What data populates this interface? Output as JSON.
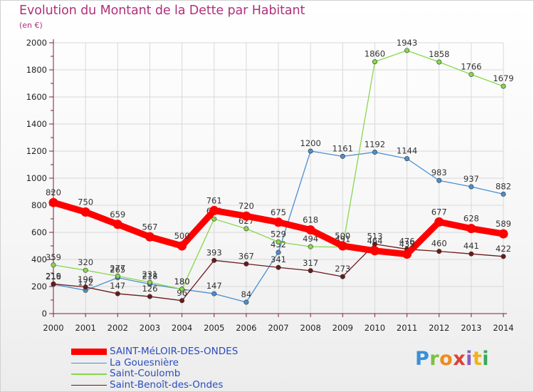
{
  "title": "Evolution du Montant de la Dette par Habitant",
  "unit": "(en €)",
  "brand": "Proxiti",
  "colors": {
    "title": "#b0307a",
    "legend_text": "#2a4cbc",
    "axis": "#7a1f3d",
    "grid": "#d8d8d8"
  },
  "chart_data": {
    "type": "line",
    "title": "Evolution du Montant de la Dette par Habitant",
    "ylabel": "(en €)",
    "xlabel": "",
    "x": [
      2000,
      2001,
      2002,
      2003,
      2004,
      2005,
      2006,
      2007,
      2008,
      2009,
      2010,
      2011,
      2012,
      2013,
      2014
    ],
    "ylim": [
      0,
      2000
    ],
    "yticks": [
      0,
      200,
      400,
      600,
      800,
      1000,
      1200,
      1400,
      1600,
      1800,
      2000
    ],
    "grid": true,
    "legend_placement": "bottom-left",
    "series": [
      {
        "name": "SAINT-MéLOIR-DES-ONDES",
        "color": "#ff0000",
        "emphasis": true,
        "values": [
          820,
          750,
          659,
          567,
          500,
          761,
          720,
          675,
          618,
          500,
          464,
          439,
          677,
          628,
          589
        ]
      },
      {
        "name": "La Gouesnière",
        "color": "#4b8fd0",
        "values": [
          216,
          172,
          265,
          218,
          180,
          147,
          84,
          452,
          1200,
          1161,
          1192,
          1144,
          983,
          937,
          882
        ]
      },
      {
        "name": "Saint-Coulomb",
        "color": "#88d84a",
        "values": [
          359,
          320,
          277,
          231,
          180,
          699,
          627,
          529,
          494,
          491,
          1860,
          1943,
          1858,
          1766,
          1679
        ]
      },
      {
        "name": "Saint-Benoît-des-Ondes",
        "color": "#6b1a1a",
        "values": [
          219,
          196,
          147,
          126,
          96,
          393,
          367,
          341,
          317,
          273,
          513,
          476,
          460,
          441,
          422
        ]
      }
    ]
  }
}
